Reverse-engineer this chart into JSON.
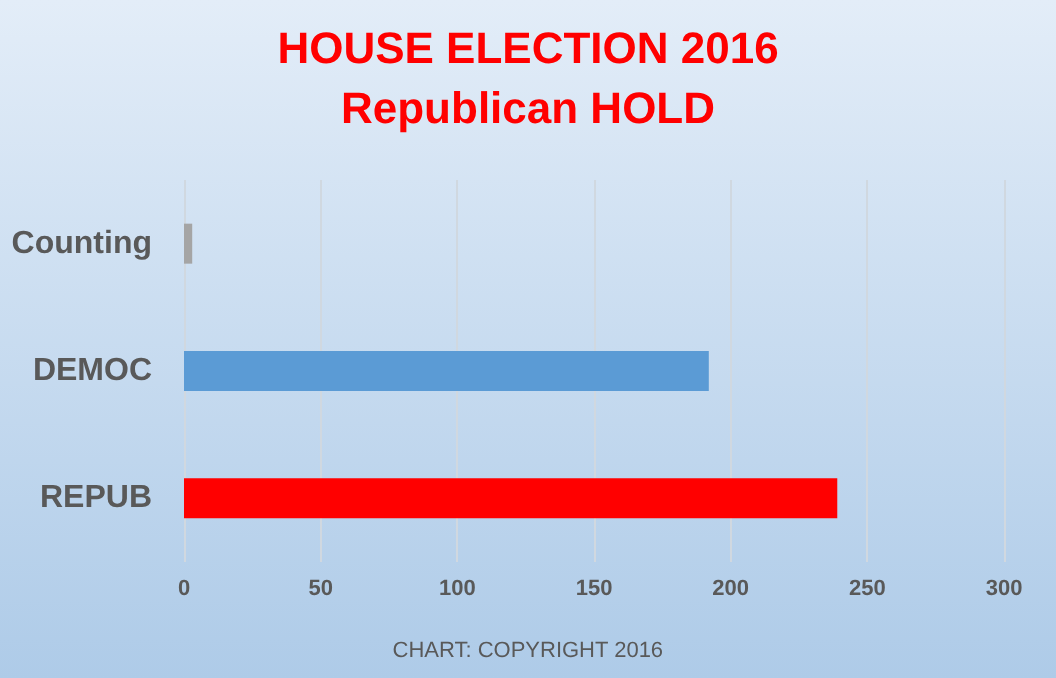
{
  "chart_data": {
    "type": "bar",
    "orientation": "horizontal",
    "title": "HOUSE ELECTION 2016",
    "subtitle": "Republican HOLD",
    "categories": [
      "Counting",
      "DEMOC",
      "REPUB"
    ],
    "values": [
      3,
      192,
      239
    ],
    "colors": [
      "#a5a5a5",
      "#5b9bd5",
      "#ff0000"
    ],
    "xlim": [
      0,
      300
    ],
    "xticks": [
      0,
      50,
      100,
      150,
      200,
      250,
      300
    ],
    "grid": "x",
    "annotations": [
      "CHART: COPYRIGHT 2016"
    ]
  }
}
